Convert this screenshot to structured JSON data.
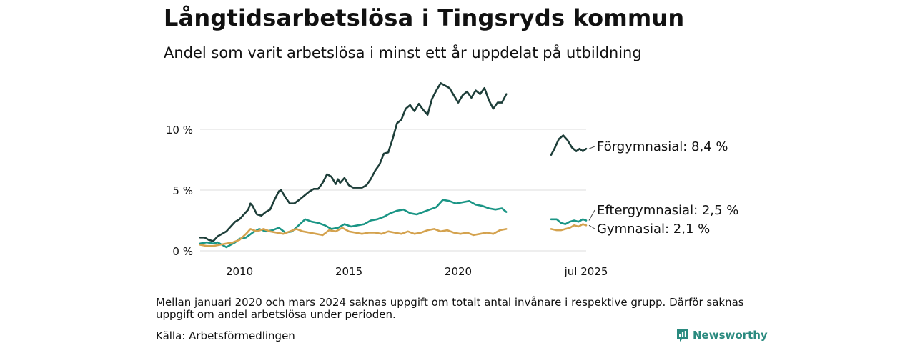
{
  "header": {
    "title": "Långtidsarbetslösa i Tingsryds kommun",
    "subtitle": "Andel som varit arbetslösa i minst ett år uppdelat på utbildning"
  },
  "footer": {
    "note": "Mellan januari 2020 och mars 2024 saknas uppgift om totalt antal invånare i respektive grupp. Därför saknas uppgift om andel arbetslösa under perioden.",
    "source": "Källa: Arbetsförmedlingen",
    "brand": "Newsworthy"
  },
  "colors": {
    "forgymnasial": "#1d3e39",
    "eftergymnasial": "#1a9585",
    "gymnasial": "#d4a24e",
    "grid": "#dddddd",
    "brand": "#2a8a7f"
  },
  "chart_data": {
    "type": "line",
    "title": "Långtidsarbetslösa i Tingsryds kommun",
    "y_ticks": [
      {
        "value": 0,
        "label": "0 %"
      },
      {
        "value": 5,
        "label": "5 %"
      },
      {
        "value": 10,
        "label": "10 %"
      }
    ],
    "x_ticks": [
      {
        "value": 2010,
        "label": "2010"
      },
      {
        "value": 2015,
        "label": "2015"
      },
      {
        "value": 2020,
        "label": "2020"
      }
    ],
    "x_tick_end": {
      "label": "jul 2025"
    },
    "ylim": [
      0,
      13.8
    ],
    "grid": true,
    "series": [
      {
        "name": "Förgymnasial",
        "label": "Förgymnasial: 8,4 %",
        "color_key": "forgymnasial",
        "segment1": [
          [
            2008.2,
            1.1
          ],
          [
            2008.4,
            1.1
          ],
          [
            2008.6,
            0.9
          ],
          [
            2008.8,
            0.8
          ],
          [
            2009.0,
            1.2
          ],
          [
            2009.2,
            1.4
          ],
          [
            2009.4,
            1.6
          ],
          [
            2009.6,
            2.0
          ],
          [
            2009.8,
            2.4
          ],
          [
            2010.0,
            2.6
          ],
          [
            2010.2,
            3.0
          ],
          [
            2010.4,
            3.4
          ],
          [
            2010.5,
            3.9
          ],
          [
            2010.6,
            3.7
          ],
          [
            2010.8,
            3.0
          ],
          [
            2011.0,
            2.9
          ],
          [
            2011.2,
            3.2
          ],
          [
            2011.4,
            3.4
          ],
          [
            2011.6,
            4.2
          ],
          [
            2011.8,
            4.9
          ],
          [
            2011.9,
            5.0
          ],
          [
            2012.1,
            4.4
          ],
          [
            2012.3,
            3.9
          ],
          [
            2012.5,
            3.9
          ],
          [
            2012.8,
            4.3
          ],
          [
            2013.0,
            4.6
          ],
          [
            2013.2,
            4.9
          ],
          [
            2013.4,
            5.1
          ],
          [
            2013.6,
            5.1
          ],
          [
            2013.8,
            5.6
          ],
          [
            2014.0,
            6.3
          ],
          [
            2014.2,
            6.1
          ],
          [
            2014.4,
            5.5
          ],
          [
            2014.5,
            5.9
          ],
          [
            2014.6,
            5.6
          ],
          [
            2014.8,
            6.0
          ],
          [
            2015.0,
            5.4
          ],
          [
            2015.2,
            5.2
          ],
          [
            2015.4,
            5.2
          ],
          [
            2015.6,
            5.2
          ],
          [
            2015.8,
            5.4
          ],
          [
            2016.0,
            5.9
          ],
          [
            2016.2,
            6.6
          ],
          [
            2016.4,
            7.1
          ],
          [
            2016.6,
            8.0
          ],
          [
            2016.8,
            8.1
          ],
          [
            2017.0,
            9.2
          ],
          [
            2017.2,
            10.5
          ],
          [
            2017.4,
            10.8
          ],
          [
            2017.6,
            11.7
          ],
          [
            2017.8,
            12.0
          ],
          [
            2018.0,
            11.5
          ],
          [
            2018.2,
            12.1
          ],
          [
            2018.4,
            11.6
          ],
          [
            2018.6,
            11.2
          ],
          [
            2018.8,
            12.5
          ],
          [
            2019.0,
            13.2
          ],
          [
            2019.2,
            13.8
          ],
          [
            2019.4,
            13.6
          ],
          [
            2019.6,
            13.4
          ],
          [
            2019.8,
            12.8
          ],
          [
            2020.0,
            12.2
          ],
          [
            2020.2,
            12.8
          ],
          [
            2020.4,
            13.1
          ],
          [
            2020.6,
            12.6
          ],
          [
            2020.8,
            13.2
          ],
          [
            2021.0,
            12.9
          ],
          [
            2021.2,
            13.4
          ],
          [
            2021.4,
            12.4
          ],
          [
            2021.6,
            11.7
          ],
          [
            2021.8,
            12.2
          ],
          [
            2022.0,
            12.2
          ],
          [
            2022.2,
            12.9
          ]
        ],
        "segment2": [
          [
            2024.25,
            7.9
          ],
          [
            2024.4,
            8.4
          ],
          [
            2024.6,
            9.2
          ],
          [
            2024.8,
            9.5
          ],
          [
            2025.0,
            9.1
          ],
          [
            2025.2,
            8.5
          ],
          [
            2025.4,
            8.2
          ],
          [
            2025.55,
            8.4
          ],
          [
            2025.7,
            8.2
          ],
          [
            2025.85,
            8.4
          ]
        ]
      },
      {
        "name": "Eftergymnasial",
        "label": "Eftergymnasial: 2,5 %",
        "color_key": "eftergymnasial",
        "segment1": [
          [
            2008.2,
            0.6
          ],
          [
            2008.5,
            0.7
          ],
          [
            2008.8,
            0.6
          ],
          [
            2009.0,
            0.7
          ],
          [
            2009.2,
            0.5
          ],
          [
            2009.4,
            0.3
          ],
          [
            2009.6,
            0.5
          ],
          [
            2009.8,
            0.7
          ],
          [
            2010.0,
            1.0
          ],
          [
            2010.3,
            1.1
          ],
          [
            2010.6,
            1.5
          ],
          [
            2010.9,
            1.8
          ],
          [
            2011.2,
            1.6
          ],
          [
            2011.5,
            1.7
          ],
          [
            2011.8,
            1.9
          ],
          [
            2012.1,
            1.5
          ],
          [
            2012.4,
            1.6
          ],
          [
            2012.7,
            2.1
          ],
          [
            2013.0,
            2.6
          ],
          [
            2013.3,
            2.4
          ],
          [
            2013.6,
            2.3
          ],
          [
            2013.9,
            2.1
          ],
          [
            2014.2,
            1.8
          ],
          [
            2014.5,
            1.9
          ],
          [
            2014.8,
            2.2
          ],
          [
            2015.1,
            2.0
          ],
          [
            2015.4,
            2.1
          ],
          [
            2015.7,
            2.2
          ],
          [
            2016.0,
            2.5
          ],
          [
            2016.3,
            2.6
          ],
          [
            2016.6,
            2.8
          ],
          [
            2016.9,
            3.1
          ],
          [
            2017.2,
            3.3
          ],
          [
            2017.5,
            3.4
          ],
          [
            2017.8,
            3.1
          ],
          [
            2018.1,
            3.0
          ],
          [
            2018.4,
            3.2
          ],
          [
            2018.7,
            3.4
          ],
          [
            2019.0,
            3.6
          ],
          [
            2019.3,
            4.2
          ],
          [
            2019.6,
            4.1
          ],
          [
            2019.9,
            3.9
          ],
          [
            2020.2,
            4.0
          ],
          [
            2020.5,
            4.1
          ],
          [
            2020.8,
            3.8
          ],
          [
            2021.1,
            3.7
          ],
          [
            2021.4,
            3.5
          ],
          [
            2021.7,
            3.4
          ],
          [
            2022.0,
            3.5
          ],
          [
            2022.2,
            3.2
          ]
        ],
        "segment2": [
          [
            2024.25,
            2.6
          ],
          [
            2024.5,
            2.6
          ],
          [
            2024.7,
            2.3
          ],
          [
            2024.9,
            2.2
          ],
          [
            2025.1,
            2.4
          ],
          [
            2025.3,
            2.5
          ],
          [
            2025.5,
            2.4
          ],
          [
            2025.7,
            2.6
          ],
          [
            2025.85,
            2.5
          ]
        ]
      },
      {
        "name": "Gymnasial",
        "label": "Gymnasial: 2,1 %",
        "color_key": "gymnasial",
        "segment1": [
          [
            2008.2,
            0.5
          ],
          [
            2008.5,
            0.4
          ],
          [
            2008.8,
            0.4
          ],
          [
            2009.1,
            0.5
          ],
          [
            2009.4,
            0.6
          ],
          [
            2009.7,
            0.7
          ],
          [
            2010.0,
            0.9
          ],
          [
            2010.3,
            1.4
          ],
          [
            2010.5,
            1.8
          ],
          [
            2010.8,
            1.6
          ],
          [
            2011.1,
            1.8
          ],
          [
            2011.4,
            1.6
          ],
          [
            2011.7,
            1.5
          ],
          [
            2012.0,
            1.4
          ],
          [
            2012.3,
            1.6
          ],
          [
            2012.6,
            1.8
          ],
          [
            2012.9,
            1.6
          ],
          [
            2013.2,
            1.5
          ],
          [
            2013.5,
            1.4
          ],
          [
            2013.8,
            1.3
          ],
          [
            2014.1,
            1.7
          ],
          [
            2014.4,
            1.6
          ],
          [
            2014.7,
            1.9
          ],
          [
            2015.0,
            1.6
          ],
          [
            2015.3,
            1.5
          ],
          [
            2015.6,
            1.4
          ],
          [
            2015.9,
            1.5
          ],
          [
            2016.2,
            1.5
          ],
          [
            2016.5,
            1.4
          ],
          [
            2016.8,
            1.6
          ],
          [
            2017.1,
            1.5
          ],
          [
            2017.4,
            1.4
          ],
          [
            2017.7,
            1.6
          ],
          [
            2018.0,
            1.4
          ],
          [
            2018.3,
            1.5
          ],
          [
            2018.6,
            1.7
          ],
          [
            2018.9,
            1.8
          ],
          [
            2019.2,
            1.6
          ],
          [
            2019.5,
            1.7
          ],
          [
            2019.8,
            1.5
          ],
          [
            2020.1,
            1.4
          ],
          [
            2020.4,
            1.5
          ],
          [
            2020.7,
            1.3
          ],
          [
            2021.0,
            1.4
          ],
          [
            2021.3,
            1.5
          ],
          [
            2021.6,
            1.4
          ],
          [
            2021.9,
            1.7
          ],
          [
            2022.2,
            1.8
          ]
        ],
        "segment2": [
          [
            2024.25,
            1.8
          ],
          [
            2024.5,
            1.7
          ],
          [
            2024.7,
            1.7
          ],
          [
            2024.9,
            1.8
          ],
          [
            2025.1,
            1.9
          ],
          [
            2025.3,
            2.1
          ],
          [
            2025.5,
            2.0
          ],
          [
            2025.7,
            2.2
          ],
          [
            2025.85,
            2.1
          ]
        ]
      }
    ]
  }
}
